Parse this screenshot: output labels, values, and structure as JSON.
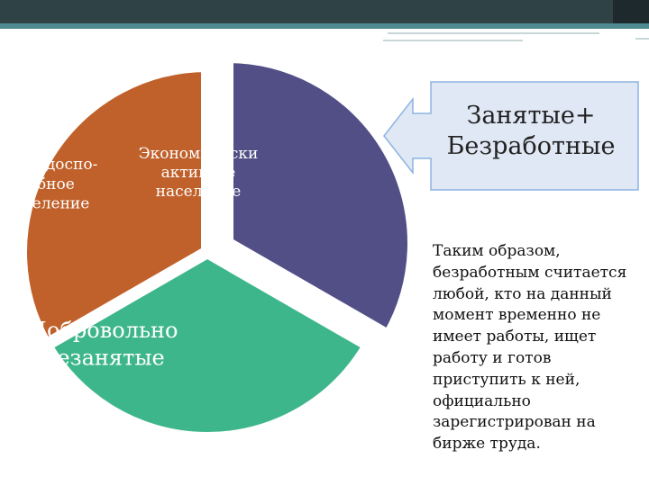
{
  "chart_data": {
    "type": "pie",
    "title": "",
    "slices": [
      {
        "label": "",
        "value": 1,
        "color": "#514f86",
        "exploded": true
      },
      {
        "label": "Добровольно\nнезанятые",
        "value": 1,
        "color": "#3eb68b",
        "exploded": false
      },
      {
        "label": "Нетрудоспо-\nсобное\nнаселение",
        "value": 1,
        "color": "#c0612b",
        "exploded": false
      }
    ],
    "annotation": "Экономически\nактивное\nнаселение"
  },
  "callout": {
    "text": "Занятые+\nБезработные",
    "fill": "#dfe8f4",
    "border": "#8db3e2"
  },
  "note": {
    "text": "Таким образом,\nбезработным считается\nлюбой, кто на данный\nмомент временно не\nимеет работы, ищет\nработу и готов\nприступить к ней,\nофициально\nзарегистрирован на\nбирже труда."
  },
  "colors": {
    "header_band": "#2f4347",
    "header_line": "#4f8c92"
  }
}
